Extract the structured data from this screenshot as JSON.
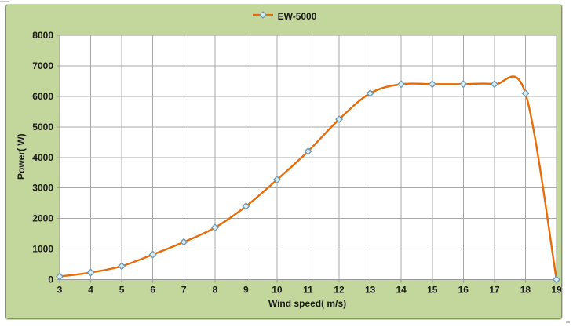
{
  "window": {
    "background": "#ffffff"
  },
  "chart": {
    "background": "#c3d69b",
    "border_color": "#7e9a52",
    "plot_background": "#ffffff",
    "gridline_color": "#a8a8a8",
    "axis_line_color": "#9a9a9a",
    "tick_color": "#9a9a9a",
    "text_color": "#1a1a1a",
    "series_color": "#e66c09",
    "marker_fill": "#d9ecf2",
    "marker_stroke": "#6d98b0"
  },
  "legend": {
    "label": "EW-5000"
  },
  "chart_data": {
    "type": "line",
    "title": "",
    "xlabel": "Wind speed( m/s)",
    "ylabel": "Power( W)",
    "series": [
      {
        "name": "EW-5000",
        "x": [
          3,
          4,
          5,
          6,
          7,
          8,
          9,
          10,
          11,
          12,
          13,
          14,
          15,
          16,
          17,
          18,
          19
        ],
        "y": [
          100,
          230,
          440,
          820,
          1230,
          1700,
          2400,
          3270,
          4200,
          5250,
          6100,
          6400,
          6400,
          6400,
          6400,
          6100,
          0
        ]
      }
    ],
    "xlim": [
      3,
      19
    ],
    "ylim": [
      0,
      8000
    ],
    "xticks": [
      3,
      4,
      5,
      6,
      7,
      8,
      9,
      10,
      11,
      12,
      13,
      14,
      15,
      16,
      17,
      18,
      19
    ],
    "yticks": [
      0,
      1000,
      2000,
      3000,
      4000,
      5000,
      6000,
      7000,
      8000
    ],
    "grid": true,
    "legend_position": "top",
    "marker": "diamond",
    "line_style": "smooth"
  }
}
